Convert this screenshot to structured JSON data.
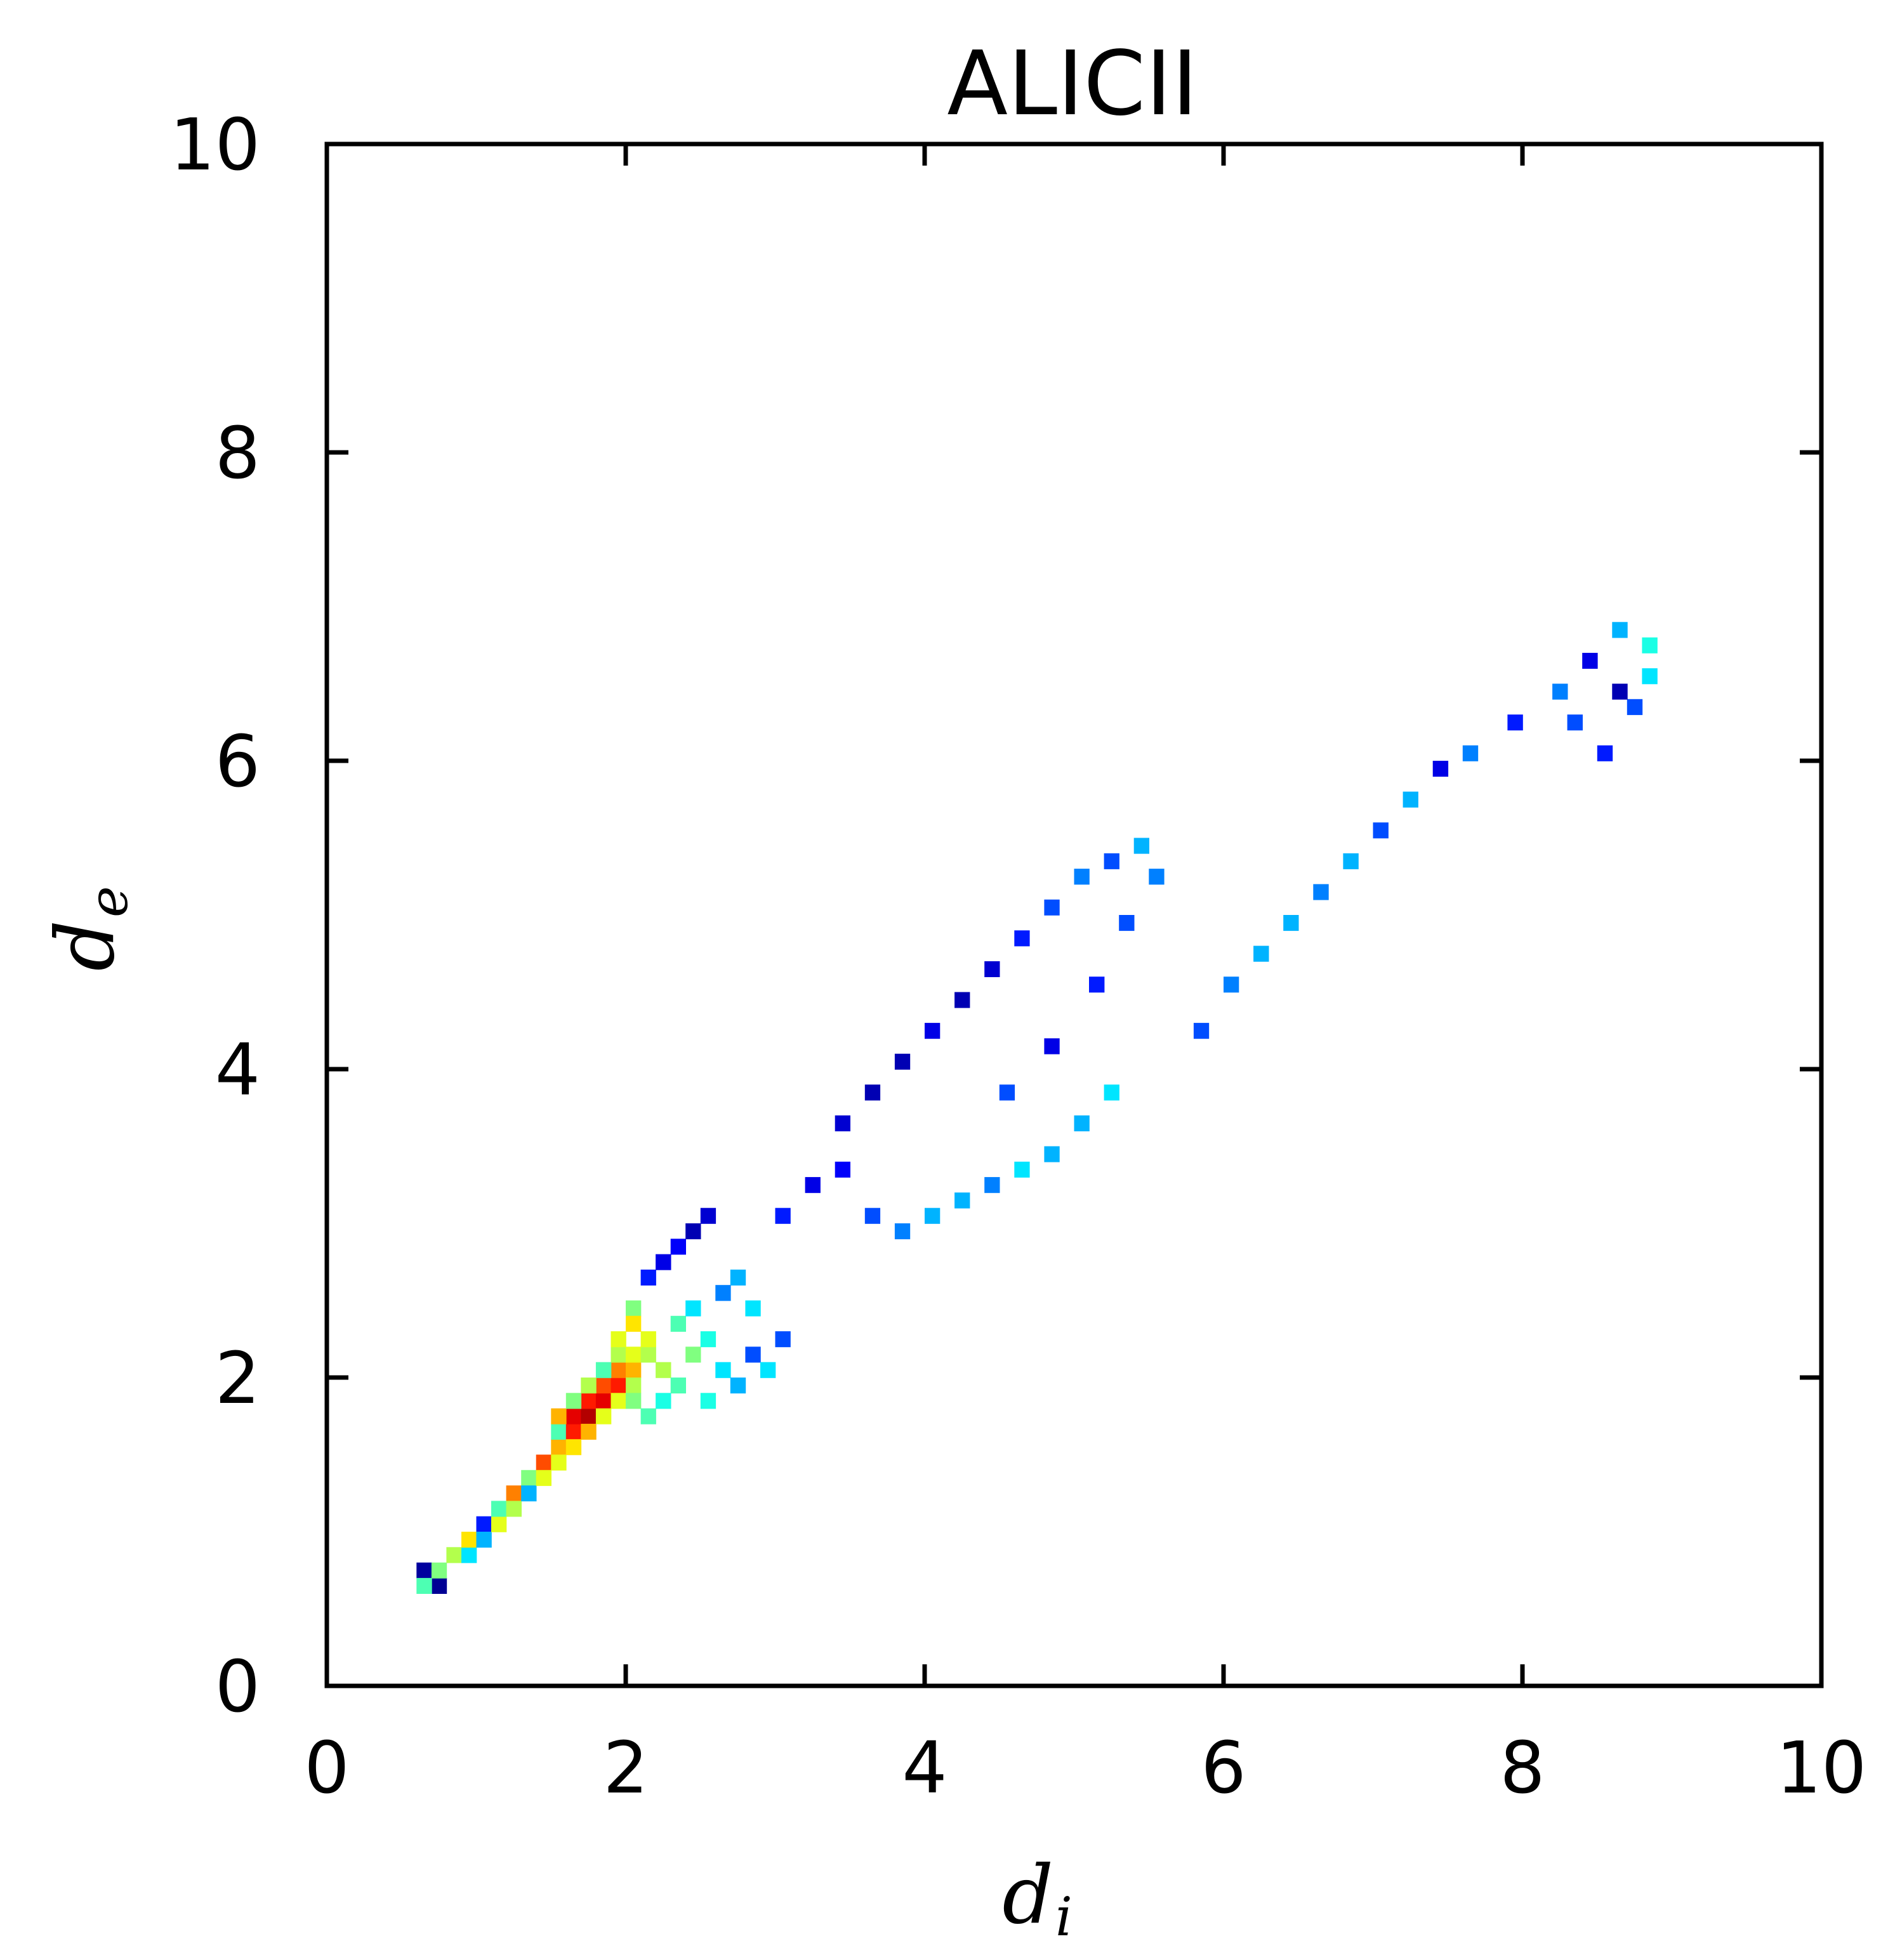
{
  "chart_data": {
    "type": "heatmap",
    "title": "ALICII",
    "xlabel": {
      "main": "d",
      "sub": "i"
    },
    "ylabel": {
      "main": "d",
      "sub": "e"
    },
    "xlim": [
      0,
      10
    ],
    "ylim": [
      0,
      10
    ],
    "x_ticks": [
      "0",
      "2",
      "4",
      "6",
      "8",
      "10"
    ],
    "y_ticks": [
      "0",
      "2",
      "4",
      "6",
      "8",
      "10"
    ],
    "grid": false,
    "colormap": "jet",
    "bin_size": 0.1,
    "colors": {
      "navy": "#00007f",
      "blue": "#0000ff",
      "royal": "#0064ff",
      "cyan": "#00ffff",
      "green": "#7dff7a",
      "yellow": "#ffff00",
      "orange": "#ff8800",
      "red": "#ff0000",
      "darkred": "#7f0000"
    },
    "intensity_scale": "relative density 0–1 (no colorbar shown)",
    "cells": [
      [
        0.65,
        0.75,
        0.03
      ],
      [
        0.75,
        0.65,
        0.02
      ],
      [
        0.65,
        0.65,
        0.45
      ],
      [
        0.75,
        0.75,
        0.5
      ],
      [
        0.85,
        0.85,
        0.55
      ],
      [
        0.95,
        0.85,
        0.35
      ],
      [
        0.95,
        0.95,
        0.65
      ],
      [
        1.05,
        1.05,
        0.15
      ],
      [
        1.05,
        0.95,
        0.3
      ],
      [
        1.15,
        1.05,
        0.6
      ],
      [
        1.15,
        1.15,
        0.45
      ],
      [
        1.25,
        1.25,
        0.75
      ],
      [
        1.25,
        1.15,
        0.55
      ],
      [
        1.35,
        1.35,
        0.5
      ],
      [
        1.35,
        1.25,
        0.3
      ],
      [
        1.45,
        1.45,
        0.8
      ],
      [
        1.45,
        1.35,
        0.6
      ],
      [
        1.55,
        1.55,
        0.7
      ],
      [
        1.55,
        1.45,
        0.6
      ],
      [
        1.55,
        1.65,
        0.45
      ],
      [
        1.65,
        1.65,
        0.85
      ],
      [
        1.65,
        1.75,
        0.9
      ],
      [
        1.65,
        1.55,
        0.65
      ],
      [
        1.55,
        1.75,
        0.7
      ],
      [
        1.75,
        1.75,
        0.95
      ],
      [
        1.75,
        1.85,
        0.85
      ],
      [
        1.75,
        1.65,
        0.7
      ],
      [
        1.85,
        1.85,
        0.9
      ],
      [
        1.85,
        1.95,
        0.8
      ],
      [
        1.85,
        1.75,
        0.6
      ],
      [
        1.95,
        1.95,
        0.85
      ],
      [
        1.95,
        2.05,
        0.75
      ],
      [
        1.95,
        1.85,
        0.6
      ],
      [
        1.95,
        2.15,
        0.55
      ],
      [
        2.05,
        2.05,
        0.7
      ],
      [
        2.05,
        2.15,
        0.6
      ],
      [
        2.05,
        1.95,
        0.55
      ],
      [
        2.05,
        1.85,
        0.5
      ],
      [
        2.15,
        2.15,
        0.55
      ],
      [
        2.15,
        2.25,
        0.6
      ],
      [
        2.15,
        1.75,
        0.45
      ],
      [
        2.25,
        1.85,
        0.4
      ],
      [
        2.25,
        2.05,
        0.55
      ],
      [
        2.35,
        1.95,
        0.45
      ],
      [
        2.45,
        2.15,
        0.5
      ],
      [
        2.55,
        1.85,
        0.4
      ],
      [
        2.05,
        2.45,
        0.5
      ],
      [
        2.05,
        2.35,
        0.65
      ],
      [
        1.95,
        2.25,
        0.6
      ],
      [
        1.85,
        2.05,
        0.45
      ],
      [
        1.75,
        1.95,
        0.55
      ],
      [
        1.65,
        1.85,
        0.5
      ],
      [
        2.35,
        2.35,
        0.45
      ],
      [
        2.45,
        2.45,
        0.35
      ],
      [
        2.55,
        2.25,
        0.4
      ],
      [
        2.65,
        2.05,
        0.35
      ],
      [
        2.75,
        1.95,
        0.3
      ],
      [
        2.85,
        2.15,
        0.2
      ],
      [
        2.95,
        2.05,
        0.35
      ],
      [
        3.05,
        2.25,
        0.2
      ],
      [
        2.15,
        2.65,
        0.15
      ],
      [
        2.25,
        2.75,
        0.1
      ],
      [
        2.35,
        2.85,
        0.12
      ],
      [
        2.45,
        2.95,
        0.05
      ],
      [
        2.55,
        3.05,
        0.08
      ],
      [
        2.65,
        2.55,
        0.25
      ],
      [
        2.75,
        2.65,
        0.3
      ],
      [
        2.85,
        2.45,
        0.35
      ],
      [
        3.05,
        3.05,
        0.15
      ],
      [
        3.25,
        3.25,
        0.1
      ],
      [
        3.45,
        3.35,
        0.12
      ],
      [
        3.65,
        3.05,
        0.2
      ],
      [
        3.85,
        2.95,
        0.25
      ],
      [
        4.05,
        3.05,
        0.3
      ],
      [
        4.25,
        3.15,
        0.3
      ],
      [
        4.45,
        3.25,
        0.25
      ],
      [
        4.65,
        3.35,
        0.35
      ],
      [
        4.85,
        3.45,
        0.3
      ],
      [
        5.05,
        3.65,
        0.3
      ],
      [
        5.25,
        3.85,
        0.35
      ],
      [
        3.45,
        3.65,
        0.08
      ],
      [
        3.65,
        3.85,
        0.05
      ],
      [
        3.85,
        4.05,
        0.05
      ],
      [
        4.05,
        4.25,
        0.1
      ],
      [
        4.25,
        4.45,
        0.05
      ],
      [
        4.45,
        4.65,
        0.08
      ],
      [
        4.65,
        4.85,
        0.15
      ],
      [
        4.85,
        5.05,
        0.2
      ],
      [
        5.05,
        5.25,
        0.25
      ],
      [
        5.25,
        5.35,
        0.2
      ],
      [
        5.45,
        5.45,
        0.3
      ],
      [
        5.55,
        5.25,
        0.25
      ],
      [
        4.55,
        3.85,
        0.2
      ],
      [
        4.85,
        4.15,
        0.1
      ],
      [
        5.15,
        4.55,
        0.15
      ],
      [
        5.35,
        4.95,
        0.2
      ],
      [
        5.85,
        4.25,
        0.2
      ],
      [
        6.05,
        4.55,
        0.25
      ],
      [
        6.25,
        4.75,
        0.3
      ],
      [
        6.45,
        4.95,
        0.3
      ],
      [
        6.65,
        5.15,
        0.25
      ],
      [
        6.85,
        5.35,
        0.3
      ],
      [
        7.05,
        5.55,
        0.2
      ],
      [
        7.25,
        5.75,
        0.3
      ],
      [
        7.45,
        5.95,
        0.1
      ],
      [
        7.65,
        6.05,
        0.25
      ],
      [
        7.95,
        6.25,
        0.15
      ],
      [
        8.25,
        6.45,
        0.25
      ],
      [
        8.45,
        6.65,
        0.1
      ],
      [
        8.65,
        6.85,
        0.3
      ],
      [
        8.75,
        6.35,
        0.2
      ],
      [
        8.85,
        6.55,
        0.35
      ],
      [
        8.55,
        6.05,
        0.15
      ],
      [
        8.35,
        6.25,
        0.2
      ],
      [
        8.65,
        6.45,
        0.05
      ],
      [
        8.85,
        6.75,
        0.4
      ]
    ]
  }
}
